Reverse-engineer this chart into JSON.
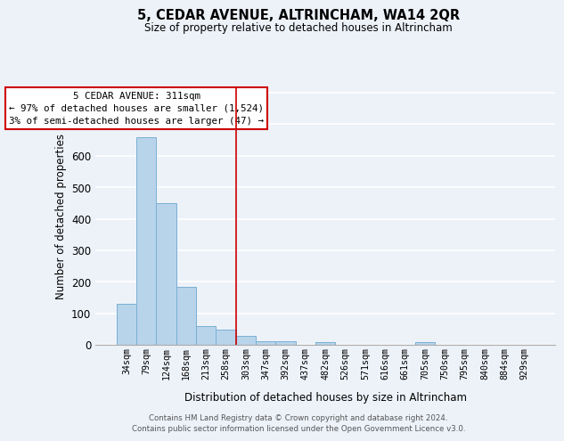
{
  "title": "5, CEDAR AVENUE, ALTRINCHAM, WA14 2QR",
  "subtitle": "Size of property relative to detached houses in Altrincham",
  "xlabel": "Distribution of detached houses by size in Altrincham",
  "ylabel": "Number of detached properties",
  "bar_labels": [
    "34sqm",
    "79sqm",
    "124sqm",
    "168sqm",
    "213sqm",
    "258sqm",
    "303sqm",
    "347sqm",
    "392sqm",
    "437sqm",
    "482sqm",
    "526sqm",
    "571sqm",
    "616sqm",
    "661sqm",
    "705sqm",
    "750sqm",
    "795sqm",
    "840sqm",
    "884sqm",
    "929sqm"
  ],
  "bar_values": [
    130,
    660,
    450,
    183,
    60,
    49,
    27,
    12,
    10,
    0,
    8,
    0,
    0,
    0,
    0,
    8,
    0,
    0,
    0,
    0,
    0
  ],
  "bar_color": "#b8d4ea",
  "bar_edge_color": "#7aafd4",
  "subject_bar_index": 6,
  "subject_line_color": "#cc0000",
  "ylim": [
    0,
    820
  ],
  "yticks": [
    0,
    100,
    200,
    300,
    400,
    500,
    600,
    700,
    800
  ],
  "annotation_title": "5 CEDAR AVENUE: 311sqm",
  "annotation_line1": "← 97% of detached houses are smaller (1,524)",
  "annotation_line2": "3% of semi-detached houses are larger (47) →",
  "annotation_box_color": "#ffffff",
  "annotation_box_edge_color": "#cc0000",
  "footer_line1": "Contains HM Land Registry data © Crown copyright and database right 2024.",
  "footer_line2": "Contains public sector information licensed under the Open Government Licence v3.0.",
  "background_color": "#edf2f9",
  "grid_color": "#ffffff"
}
